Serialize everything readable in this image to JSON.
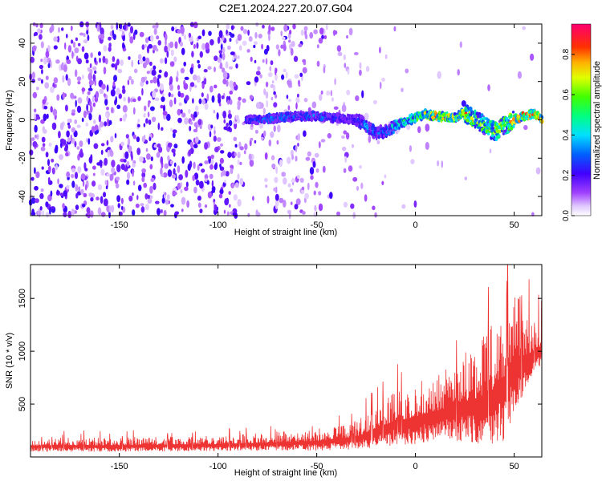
{
  "title": "C2E1.2024.227.20.07.G04",
  "chart_data": [
    {
      "id": "spectrogram",
      "type": "heatmap",
      "xlabel": "Height of straight line (km)",
      "ylabel": "Frequency (Hz)",
      "xlim": [
        -195,
        64
      ],
      "ylim": [
        -50,
        50
      ],
      "xticks": [
        -150,
        -100,
        -50,
        0,
        50
      ],
      "yticks": [
        -40,
        -20,
        0,
        20,
        40
      ],
      "colorbar": {
        "label": "Normalized spectral amplitude",
        "range": [
          0,
          0.95
        ],
        "ticks": [
          0.0,
          0.2,
          0.4,
          0.6,
          0.8
        ]
      },
      "signal_trace": {
        "x": [
          -86,
          -80,
          -70,
          -60,
          -50,
          -40,
          -30,
          -25,
          -20,
          -15,
          -10,
          -5,
          0,
          5,
          10,
          20,
          25,
          30,
          35,
          40,
          45,
          50,
          55,
          60,
          64
        ],
        "frequency": [
          0,
          0,
          1,
          2,
          2,
          1,
          0,
          -3,
          -7,
          -6,
          -3,
          -1,
          1,
          3,
          2,
          1,
          4,
          0,
          -3,
          -6,
          -3,
          0,
          2,
          3,
          1
        ],
        "peak_amplitude": [
          0.3,
          0.35,
          0.4,
          0.35,
          0.4,
          0.35,
          0.3,
          0.45,
          0.35,
          0.4,
          0.55,
          0.6,
          0.7,
          0.85,
          0.9,
          0.8,
          0.95,
          0.85,
          0.7,
          0.75,
          0.8,
          0.9,
          0.95,
          0.9,
          0.85
        ]
      }
    },
    {
      "id": "snr",
      "type": "line",
      "xlabel": "Height of straight line (km)",
      "ylabel": "SNR (10 * v/v)",
      "xlim": [
        -195,
        64
      ],
      "ylim": [
        0,
        1820
      ],
      "xticks": [
        -150,
        -100,
        -50,
        0,
        50
      ],
      "yticks": [
        500,
        1000,
        1500
      ],
      "series": [
        {
          "name": "SNR",
          "color": "#ee3333",
          "envelope_x": [
            -195,
            -150,
            -100,
            -50,
            -30,
            -20,
            -10,
            0,
            10,
            20,
            30,
            40,
            45,
            50,
            55,
            60,
            64
          ],
          "envelope_low": [
            50,
            50,
            55,
            60,
            70,
            90,
            110,
            120,
            150,
            150,
            130,
            100,
            150,
            350,
            600,
            800,
            850
          ],
          "envelope_high": [
            180,
            185,
            200,
            260,
            330,
            500,
            620,
            700,
            780,
            900,
            1050,
            1300,
            1500,
            1700,
            1400,
            1250,
            1200
          ]
        }
      ]
    }
  ]
}
